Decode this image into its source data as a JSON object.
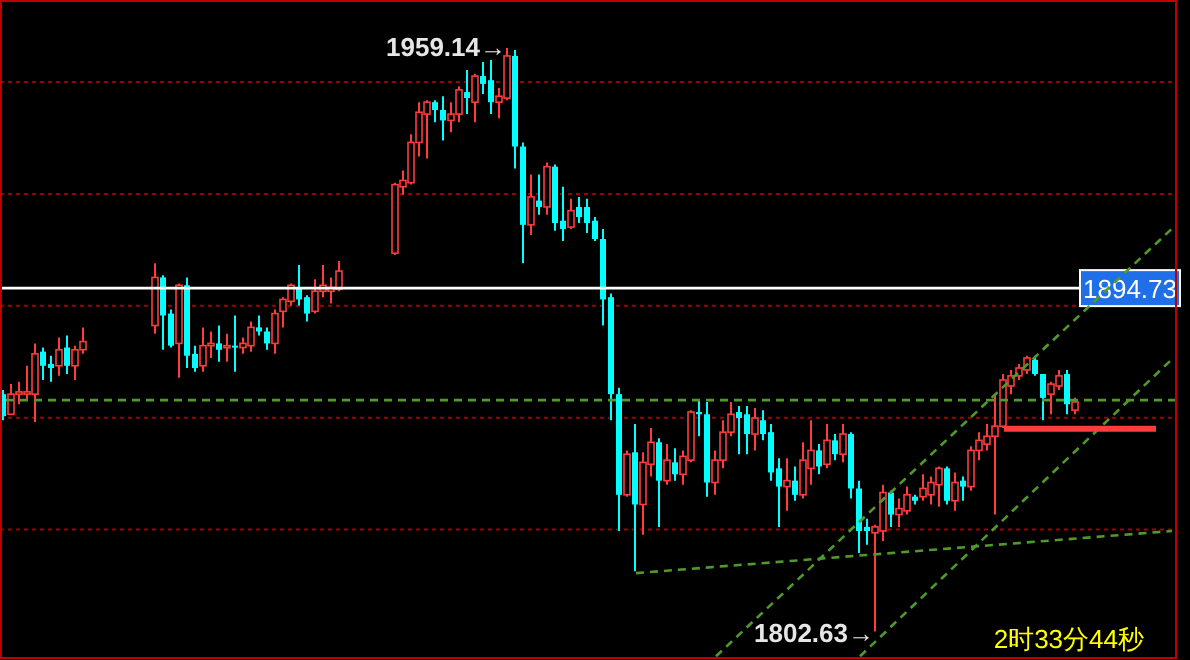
{
  "chart_data": {
    "type": "candlestick",
    "categories": [
      null,
      null,
      null,
      null,
      null,
      null,
      null,
      null,
      null,
      null,
      null,
      null,
      null,
      null,
      null,
      null,
      null,
      null,
      null,
      null,
      null,
      null,
      null,
      null,
      null,
      null,
      null,
      null,
      null,
      null,
      null,
      null,
      null,
      null,
      null,
      null,
      null,
      null,
      null,
      null,
      null,
      null,
      null,
      null,
      null,
      null,
      null,
      null,
      null,
      null,
      null,
      null,
      null,
      null,
      null,
      null,
      null,
      null,
      null,
      null,
      null,
      null,
      null,
      null,
      null,
      null,
      null,
      null,
      null,
      null,
      null,
      null,
      null,
      null,
      null,
      null,
      null,
      null,
      null,
      null,
      null,
      null,
      null,
      null,
      null,
      null,
      null,
      null,
      null,
      null,
      null,
      null,
      null,
      null,
      null,
      null,
      null,
      null,
      null,
      null,
      null,
      null,
      null,
      null,
      null,
      null,
      null,
      null,
      null,
      null,
      null,
      null,
      null,
      null,
      null,
      null,
      null,
      null,
      null,
      null,
      null,
      null,
      null,
      null,
      null,
      null,
      null,
      null,
      null,
      null,
      null,
      null,
      null,
      null,
      null,
      null,
      null,
      null,
      null,
      null,
      null,
      null,
      null,
      null,
      null,
      null,
      null
    ],
    "ohlc": [
      [
        1866.3,
        1867.4,
        1859.3,
        1860.4
      ],
      [
        1860.9,
        1869.0,
        1860.9,
        1866.3
      ],
      [
        1866.3,
        1869.6,
        1863.6,
        1866.9
      ],
      [
        1866.3,
        1873.9,
        1864.7,
        1866.9
      ],
      [
        1866.3,
        1879.9,
        1858.8,
        1877.1
      ],
      [
        1877.7,
        1878.8,
        1870.1,
        1873.9
      ],
      [
        1874.4,
        1876.6,
        1869.6,
        1873.3
      ],
      [
        1873.9,
        1881.5,
        1871.2,
        1878.2
      ],
      [
        1878.8,
        1882.0,
        1871.7,
        1873.9
      ],
      [
        1873.9,
        1879.3,
        1870.1,
        1878.2
      ],
      [
        1878.2,
        1884.2,
        1877.1,
        1880.4
      ],
      null,
      null,
      null,
      null,
      null,
      null,
      null,
      null,
      [
        1884.7,
        1901.4,
        1882.5,
        1897.6
      ],
      [
        1897.6,
        1898.2,
        1878.2,
        1887.4
      ],
      [
        1887.9,
        1889.0,
        1878.8,
        1879.3
      ],
      [
        1879.9,
        1896.0,
        1870.7,
        1895.5
      ],
      [
        1895.5,
        1897.6,
        1873.3,
        1876.6
      ],
      [
        1877.1,
        1879.3,
        1872.3,
        1873.3
      ],
      [
        1873.9,
        1884.2,
        1872.3,
        1879.3
      ],
      [
        1879.3,
        1883.1,
        1876.0,
        1879.9
      ],
      [
        1879.9,
        1884.7,
        1875.0,
        1878.2
      ],
      [
        1878.8,
        1882.5,
        1875.0,
        1879.3
      ],
      [
        1879.3,
        1887.4,
        1872.3,
        1878.8
      ],
      [
        1878.8,
        1881.5,
        1877.1,
        1879.9
      ],
      [
        1879.3,
        1885.8,
        1877.7,
        1884.2
      ],
      [
        1884.2,
        1887.4,
        1882.0,
        1883.1
      ],
      [
        1883.1,
        1884.2,
        1878.2,
        1879.9
      ],
      [
        1879.9,
        1889.0,
        1877.1,
        1887.9
      ],
      [
        1888.5,
        1892.3,
        1884.2,
        1891.7
      ],
      [
        1891.2,
        1896.0,
        1890.1,
        1895.5
      ],
      [
        1894.9,
        1900.9,
        1890.1,
        1891.7
      ],
      [
        1892.3,
        1892.8,
        1885.8,
        1887.9
      ],
      [
        1888.5,
        1897.1,
        1887.9,
        1893.9
      ],
      [
        1893.9,
        1900.9,
        1892.3,
        1895.5
      ],
      [
        1893.9,
        1897.6,
        1890.6,
        1894.9
      ],
      [
        1894.4,
        1902.0,
        1893.9,
        1899.3
      ],
      null,
      null,
      null,
      null,
      null,
      null,
      [
        1904.1,
        1923.0,
        1903.6,
        1922.5
      ],
      [
        1921.9,
        1926.3,
        1919.8,
        1923.6
      ],
      [
        1923.0,
        1936.0,
        1922.5,
        1933.8
      ],
      [
        1933.8,
        1944.6,
        1930.0,
        1941.9
      ],
      [
        1941.4,
        1945.1,
        1929.5,
        1944.6
      ],
      [
        1944.6,
        1945.1,
        1939.2,
        1942.5
      ],
      [
        1942.5,
        1946.2,
        1934.3,
        1939.7
      ],
      [
        1939.7,
        1944.6,
        1936.5,
        1941.4
      ],
      [
        1941.4,
        1948.9,
        1939.2,
        1947.9
      ],
      [
        1947.3,
        1953.2,
        1941.4,
        1945.7
      ],
      [
        1944.6,
        1952.2,
        1939.2,
        1951.6
      ],
      [
        1951.6,
        1955.4,
        1946.8,
        1949.5
      ],
      [
        1950.5,
        1955.9,
        1941.4,
        1944.6
      ],
      [
        1944.6,
        1948.4,
        1940.3,
        1946.2
      ],
      [
        1945.7,
        1959.14,
        1945.1,
        1957.0
      ],
      [
        1957.0,
        1958.6,
        1926.8,
        1932.7
      ],
      [
        1932.7,
        1933.8,
        1901.4,
        1911.7
      ],
      [
        1911.7,
        1925.2,
        1909.0,
        1919.2
      ],
      [
        1918.2,
        1925.2,
        1914.4,
        1916.5
      ],
      [
        1916.5,
        1928.4,
        1914.4,
        1927.3
      ],
      [
        1927.3,
        1927.9,
        1910.1,
        1912.2
      ],
      [
        1912.8,
        1921.9,
        1907.4,
        1910.6
      ],
      [
        1911.1,
        1918.7,
        1910.6,
        1915.5
      ],
      [
        1916.5,
        1919.2,
        1912.2,
        1913.8
      ],
      [
        1916.5,
        1918.7,
        1909.5,
        1912.2
      ],
      [
        1912.8,
        1913.8,
        1907.4,
        1907.9
      ],
      [
        1907.9,
        1910.6,
        1884.7,
        1891.7
      ],
      [
        1892.3,
        1893.3,
        1859.3,
        1866.3
      ],
      [
        1866.3,
        1868.0,
        1829.6,
        1839.3
      ],
      [
        1839.3,
        1851.2,
        1838.8,
        1850.2
      ],
      [
        1850.7,
        1858.3,
        1818.8,
        1836.7
      ],
      [
        1836.7,
        1850.7,
        1828.6,
        1848.0
      ],
      [
        1847.5,
        1857.2,
        1844.2,
        1853.4
      ],
      [
        1853.4,
        1854.5,
        1830.7,
        1843.1
      ],
      [
        1843.1,
        1852.9,
        1842.0,
        1848.6
      ],
      [
        1848.0,
        1851.8,
        1843.1,
        1844.8
      ],
      [
        1844.8,
        1851.2,
        1842.0,
        1849.6
      ],
      [
        1848.6,
        1862.0,
        1848.0,
        1861.5
      ],
      [
        1861.5,
        1864.7,
        1855.0,
        1860.9
      ],
      [
        1860.9,
        1864.2,
        1838.8,
        1842.6
      ],
      [
        1842.6,
        1851.2,
        1839.3,
        1848.6
      ],
      [
        1848.6,
        1859.3,
        1846.4,
        1856.1
      ],
      [
        1856.1,
        1864.2,
        1855.0,
        1860.9
      ],
      [
        1861.5,
        1863.1,
        1850.2,
        1859.9
      ],
      [
        1860.9,
        1863.1,
        1850.2,
        1855.6
      ],
      [
        1855.6,
        1862.6,
        1851.2,
        1859.9
      ],
      [
        1859.3,
        1862.0,
        1853.9,
        1855.6
      ],
      [
        1856.1,
        1858.3,
        1843.1,
        1845.3
      ],
      [
        1846.4,
        1849.1,
        1830.7,
        1841.5
      ],
      [
        1841.5,
        1849.1,
        1835.0,
        1843.1
      ],
      [
        1843.1,
        1846.9,
        1837.7,
        1839.3
      ],
      [
        1839.3,
        1853.4,
        1838.3,
        1848.6
      ],
      [
        1846.4,
        1859.3,
        1842.0,
        1851.2
      ],
      [
        1851.2,
        1852.9,
        1844.8,
        1846.9
      ],
      [
        1847.5,
        1858.3,
        1846.4,
        1853.9
      ],
      [
        1853.9,
        1855.6,
        1848.6,
        1850.2
      ],
      [
        1850.2,
        1858.3,
        1848.0,
        1855.6
      ],
      [
        1855.6,
        1856.1,
        1838.3,
        1841.0
      ],
      [
        1841.0,
        1843.1,
        1823.7,
        1829.6
      ],
      [
        1830.7,
        1832.9,
        1825.9,
        1829.6
      ],
      [
        1829.1,
        1831.3,
        1802.63,
        1830.7
      ],
      [
        1829.6,
        1842.0,
        1826.9,
        1839.9
      ],
      [
        1839.9,
        1840.4,
        1830.7,
        1834.0
      ],
      [
        1834.0,
        1838.3,
        1830.7,
        1835.6
      ],
      [
        1835.0,
        1841.5,
        1834.0,
        1839.3
      ],
      [
        1838.8,
        1839.3,
        1836.7,
        1837.7
      ],
      [
        1838.8,
        1844.8,
        1837.7,
        1841.0
      ],
      [
        1839.3,
        1844.2,
        1836.7,
        1842.6
      ],
      [
        1842.0,
        1846.9,
        1836.1,
        1846.4
      ],
      [
        1846.4,
        1846.9,
        1836.7,
        1837.7
      ],
      [
        1837.7,
        1845.3,
        1835.0,
        1842.6
      ],
      [
        1843.1,
        1844.2,
        1837.7,
        1841.5
      ],
      [
        1841.5,
        1852.3,
        1840.4,
        1851.2
      ],
      [
        1851.2,
        1856.1,
        1848.6,
        1853.9
      ],
      [
        1852.9,
        1858.3,
        1851.2,
        1855.0
      ],
      [
        1855.0,
        1866.3,
        1834.0,
        1857.7
      ],
      [
        1857.7,
        1871.7,
        1857.2,
        1870.1
      ],
      [
        1868.5,
        1872.8,
        1866.3,
        1871.2
      ],
      [
        1871.2,
        1874.4,
        1870.1,
        1873.3
      ],
      [
        1872.8,
        1876.6,
        1871.7,
        1876.0
      ],
      [
        1875.5,
        1876.6,
        1871.2,
        1871.7
      ],
      [
        1871.7,
        1871.7,
        1859.3,
        1865.3
      ],
      [
        1866.3,
        1869.6,
        1860.9,
        1869.0
      ],
      [
        1868.5,
        1872.8,
        1867.4,
        1871.2
      ],
      [
        1871.7,
        1872.8,
        1860.9,
        1863.6
      ],
      [
        1862.0,
        1865.3,
        1860.9,
        1864.2
      ],
      null,
      null,
      null,
      null,
      null,
      null,
      null,
      null,
      null,
      null,
      null,
      null
    ],
    "colors": [
      "#00ffff",
      "#ff3b3b",
      "#ff3b3b",
      "#ff3b3b",
      "#ff3b3b",
      "#00ffff",
      "#00ffff",
      "#ff3b3b",
      "#00ffff",
      "#ff3b3b",
      "#ff3b3b",
      null,
      null,
      null,
      null,
      null,
      null,
      null,
      null,
      "#ff3b3b",
      "#00ffff",
      "#00ffff",
      "#ff3b3b",
      "#00ffff",
      "#00ffff",
      "#ff3b3b",
      "#ff3b3b",
      "#00ffff",
      "#ff3b3b",
      "#00ffff",
      "#ff3b3b",
      "#ff3b3b",
      "#00ffff",
      "#00ffff",
      "#ff3b3b",
      "#ff3b3b",
      "#ff3b3b",
      "#00ffff",
      "#00ffff",
      "#ff3b3b",
      "#ff3b3b",
      "#ff3b3b",
      "#ff3b3b",
      null,
      null,
      null,
      null,
      null,
      null,
      "#ff3b3b",
      "#ff3b3b",
      "#ff3b3b",
      "#ff3b3b",
      "#ff3b3b",
      "#00ffff",
      "#00ffff",
      "#ff3b3b",
      "#ff3b3b",
      "#00ffff",
      "#ff3b3b",
      "#00ffff",
      "#00ffff",
      "#ff3b3b",
      "#ff3b3b",
      "#00ffff",
      "#00ffff",
      "#ff3b3b",
      "#00ffff",
      "#ff3b3b",
      "#00ffff",
      "#00ffff",
      "#ff3b3b",
      "#00ffff",
      "#00ffff",
      "#00ffff",
      "#00ffff",
      "#00ffff",
      "#00ffff",
      "#ff3b3b",
      "#00ffff",
      "#ff3b3b",
      "#ff3b3b",
      "#00ffff",
      "#ff3b3b",
      "#00ffff",
      "#ff3b3b",
      "#ff3b3b",
      "#00ffff",
      "#00ffff",
      "#ff3b3b",
      "#ff3b3b",
      "#ff3b3b",
      "#00ffff",
      "#00ffff",
      "#ff3b3b",
      "#00ffff",
      "#00ffff",
      "#00ffff",
      "#ff3b3b",
      "#00ffff",
      "#ff3b3b",
      "#ff3b3b",
      "#00ffff",
      "#ff3b3b",
      "#00ffff",
      "#ff3b3b",
      "#00ffff",
      "#00ffff",
      "#00ffff",
      "#ff3b3b",
      "#ff3b3b",
      "#00ffff",
      "#ff3b3b",
      "#ff3b3b",
      "#00ffff",
      "#ff3b3b",
      "#ff3b3b",
      "#ff3b3b",
      "#00ffff",
      "#ff3b3b",
      "#00ffff",
      "#ff3b3b",
      "#ff3b3b",
      "#ff3b3b",
      "#ff3b3b",
      "#ff3b3b",
      "#ff3b3b",
      "#ff3b3b",
      "#ff3b3b",
      "#00ffff",
      "#00ffff",
      "#ff3b3b",
      "#ff3b3b",
      "#00ffff",
      "#ff3b3b",
      null,
      null,
      null,
      null,
      null,
      null,
      null,
      null,
      null,
      null,
      null,
      null
    ],
    "series": [
      {
        "type": "line",
        "color": "#4f9a2a",
        "line_style": "dashed",
        "values": [
          null,
          null,
          null,
          null,
          null,
          null,
          null,
          null,
          null,
          null,
          null,
          null,
          null,
          null,
          null,
          null,
          null,
          null,
          null,
          null,
          null,
          null,
          null,
          null,
          null,
          null,
          null,
          null,
          null,
          null,
          null,
          null,
          null,
          null,
          null,
          null,
          null,
          null,
          null,
          null,
          null,
          null,
          null,
          null,
          null,
          null,
          null,
          null,
          null,
          null,
          null,
          null,
          null,
          null,
          null,
          null,
          null,
          null,
          null,
          null,
          null,
          null,
          null,
          null,
          null,
          null,
          null,
          null,
          null,
          null,
          null,
          null,
          null,
          null,
          null,
          null,
          null,
          null,
          null,
          1818.3,
          null,
          null,
          null,
          null,
          null,
          null,
          null,
          null,
          null,
          null,
          null,
          null,
          null,
          null,
          null,
          null,
          null,
          null,
          null,
          null,
          null,
          null,
          null,
          null,
          null,
          null,
          null,
          null,
          null,
          null,
          null,
          null,
          null,
          null,
          null,
          null,
          null,
          null,
          null,
          null,
          null,
          null,
          null,
          null,
          null,
          null,
          null,
          null,
          null,
          null,
          null,
          null,
          null,
          null,
          null,
          null,
          null,
          null,
          null,
          null,
          null,
          null,
          null,
          null,
          null,
          null,
          1829.6
        ]
      },
      {
        "type": "line",
        "color": "#4f9a2a",
        "line_style": "dashed",
        "values": [
          null,
          null,
          null,
          null,
          null,
          null,
          null,
          null,
          null,
          null,
          null,
          null,
          null,
          null,
          null,
          null,
          null,
          null,
          null,
          null,
          null,
          null,
          null,
          null,
          null,
          null,
          null,
          null,
          null,
          null,
          null,
          null,
          null,
          null,
          null,
          null,
          null,
          null,
          null,
          null,
          null,
          null,
          null,
          null,
          null,
          null,
          null,
          null,
          null,
          null,
          null,
          null,
          null,
          null,
          null,
          null,
          null,
          null,
          null,
          null,
          null,
          null,
          null,
          null,
          null,
          null,
          null,
          null,
          null,
          null,
          null,
          null,
          null,
          null,
          null,
          null,
          null,
          null,
          null,
          null,
          null,
          null,
          null,
          null,
          null,
          null,
          null,
          null,
          null,
          1796,
          null,
          null,
          null,
          null,
          null,
          null,
          null,
          null,
          null,
          null,
          null,
          null,
          null,
          null,
          null,
          null,
          null,
          null,
          null,
          null,
          null,
          null,
          null,
          null,
          null,
          null,
          null,
          null,
          null,
          null,
          null,
          null,
          null,
          null,
          null,
          null,
          null,
          null,
          null,
          null,
          null,
          null,
          null,
          null,
          null,
          null,
          null,
          null,
          null,
          null,
          null,
          null,
          null,
          null,
          null,
          null,
          1910.7
        ]
      },
      {
        "type": "line",
        "color": "#4f9a2a",
        "line_style": "dashed",
        "values": [
          null,
          null,
          null,
          null,
          null,
          null,
          null,
          null,
          null,
          null,
          null,
          null,
          null,
          null,
          null,
          null,
          null,
          null,
          null,
          null,
          null,
          null,
          null,
          null,
          null,
          null,
          null,
          null,
          null,
          null,
          null,
          null,
          null,
          null,
          null,
          null,
          null,
          null,
          null,
          null,
          null,
          null,
          null,
          null,
          null,
          null,
          null,
          null,
          null,
          null,
          null,
          null,
          null,
          null,
          null,
          null,
          null,
          null,
          null,
          null,
          null,
          null,
          null,
          null,
          null,
          null,
          null,
          null,
          null,
          null,
          null,
          null,
          null,
          null,
          null,
          null,
          null,
          null,
          null,
          null,
          null,
          null,
          null,
          null,
          null,
          null,
          null,
          null,
          null,
          null,
          null,
          null,
          null,
          null,
          null,
          null,
          null,
          null,
          null,
          null,
          null,
          null,
          null,
          null,
          null,
          null,
          null,
          1796,
          null,
          null,
          null,
          null,
          null,
          null,
          null,
          null,
          null,
          null,
          null,
          null,
          null,
          null,
          null,
          null,
          null,
          null,
          null,
          null,
          null,
          null,
          null,
          null,
          null,
          null,
          null,
          null,
          null,
          null,
          null,
          null,
          null,
          null,
          null,
          null,
          null,
          null,
          1875.7
        ]
      },
      {
        "type": "line",
        "color": "#ff3b3b",
        "line_style": "solid",
        "values": [
          null,
          null,
          null,
          null,
          null,
          null,
          null,
          null,
          null,
          null,
          null,
          null,
          null,
          null,
          null,
          null,
          null,
          null,
          null,
          null,
          null,
          null,
          null,
          null,
          null,
          null,
          null,
          null,
          null,
          null,
          null,
          null,
          null,
          null,
          null,
          null,
          null,
          null,
          null,
          null,
          null,
          null,
          null,
          null,
          null,
          null,
          null,
          null,
          null,
          null,
          null,
          null,
          null,
          null,
          null,
          null,
          null,
          null,
          null,
          null,
          null,
          null,
          null,
          null,
          null,
          null,
          null,
          null,
          null,
          null,
          null,
          null,
          null,
          null,
          null,
          null,
          null,
          null,
          null,
          null,
          null,
          null,
          null,
          null,
          null,
          null,
          null,
          null,
          null,
          null,
          null,
          null,
          null,
          null,
          null,
          null,
          null,
          null,
          null,
          null,
          null,
          null,
          null,
          null,
          null,
          null,
          null,
          null,
          null,
          null,
          null,
          null,
          null,
          null,
          null,
          null,
          null,
          null,
          null,
          null,
          null,
          null,
          null,
          null,
          null,
          1857.0,
          null,
          null,
          null,
          null,
          null,
          null,
          null,
          null,
          null,
          null,
          null,
          null,
          null,
          null,
          null,
          null,
          null,
          null,
          1857.0,
          null,
          null
        ]
      }
    ],
    "ylim": [
      1795,
      1972
    ],
    "yticks": [
      {
        "value": 1830,
        "label": null
      },
      {
        "value": 1860,
        "label": null
      },
      {
        "value": 1890,
        "label": null
      },
      {
        "value": 1920,
        "label": null
      },
      {
        "value": 1950,
        "label": null
      }
    ],
    "grid": "y",
    "ref_lines": [
      {
        "axis": "y",
        "value": 1894.73,
        "label": "1894.73",
        "color": "#ffffff",
        "line_style": "solid"
      },
      {
        "axis": "y",
        "value": 1864.7,
        "color": "#4f9a2a",
        "line_style": "dashed"
      }
    ],
    "annotations": [
      "1959.14→",
      "1802.63→",
      "2时33分44秒"
    ]
  }
}
